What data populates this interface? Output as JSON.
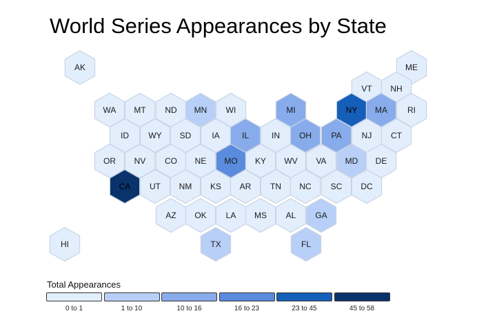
{
  "title": "World Series Appearances by State",
  "legend": {
    "title": "Total Appearances",
    "bins": [
      {
        "label": "0 to 1",
        "color": "#e3eefd"
      },
      {
        "label": "1 to 10",
        "color": "#b8d0f7"
      },
      {
        "label": "10 to 16",
        "color": "#88aceb"
      },
      {
        "label": "16 to 23",
        "color": "#5a8bdc"
      },
      {
        "label": "23 to 45",
        "color": "#165fb9"
      },
      {
        "label": "45 to 58",
        "color": "#0a336c"
      }
    ]
  },
  "states": [
    {
      "abbr": "AK",
      "bin": 0
    },
    {
      "abbr": "ME",
      "bin": 0
    },
    {
      "abbr": "VT",
      "bin": 0
    },
    {
      "abbr": "NH",
      "bin": 0
    },
    {
      "abbr": "WA",
      "bin": 0
    },
    {
      "abbr": "MT",
      "bin": 0
    },
    {
      "abbr": "ND",
      "bin": 0
    },
    {
      "abbr": "MN",
      "bin": 1
    },
    {
      "abbr": "WI",
      "bin": 0
    },
    {
      "abbr": "MI",
      "bin": 2
    },
    {
      "abbr": "NY",
      "bin": 4
    },
    {
      "abbr": "MA",
      "bin": 2
    },
    {
      "abbr": "RI",
      "bin": 0
    },
    {
      "abbr": "ID",
      "bin": 0
    },
    {
      "abbr": "WY",
      "bin": 0
    },
    {
      "abbr": "SD",
      "bin": 0
    },
    {
      "abbr": "IA",
      "bin": 0
    },
    {
      "abbr": "IL",
      "bin": 2
    },
    {
      "abbr": "IN",
      "bin": 0
    },
    {
      "abbr": "OH",
      "bin": 2
    },
    {
      "abbr": "PA",
      "bin": 2
    },
    {
      "abbr": "NJ",
      "bin": 0
    },
    {
      "abbr": "CT",
      "bin": 0
    },
    {
      "abbr": "OR",
      "bin": 0
    },
    {
      "abbr": "NV",
      "bin": 0
    },
    {
      "abbr": "CO",
      "bin": 0
    },
    {
      "abbr": "NE",
      "bin": 0
    },
    {
      "abbr": "MO",
      "bin": 3
    },
    {
      "abbr": "KY",
      "bin": 0
    },
    {
      "abbr": "WV",
      "bin": 0
    },
    {
      "abbr": "VA",
      "bin": 0
    },
    {
      "abbr": "MD",
      "bin": 1
    },
    {
      "abbr": "DE",
      "bin": 0
    },
    {
      "abbr": "CA",
      "bin": 5
    },
    {
      "abbr": "UT",
      "bin": 0
    },
    {
      "abbr": "NM",
      "bin": 0
    },
    {
      "abbr": "KS",
      "bin": 0
    },
    {
      "abbr": "AR",
      "bin": 0
    },
    {
      "abbr": "TN",
      "bin": 0
    },
    {
      "abbr": "NC",
      "bin": 0
    },
    {
      "abbr": "SC",
      "bin": 0
    },
    {
      "abbr": "DC",
      "bin": 0
    },
    {
      "abbr": "AZ",
      "bin": 0
    },
    {
      "abbr": "OK",
      "bin": 0
    },
    {
      "abbr": "LA",
      "bin": 0
    },
    {
      "abbr": "MS",
      "bin": 0
    },
    {
      "abbr": "AL",
      "bin": 0
    },
    {
      "abbr": "GA",
      "bin": 1
    },
    {
      "abbr": "HI",
      "bin": 0
    },
    {
      "abbr": "TX",
      "bin": 1
    },
    {
      "abbr": "FL",
      "bin": 1
    }
  ]
}
